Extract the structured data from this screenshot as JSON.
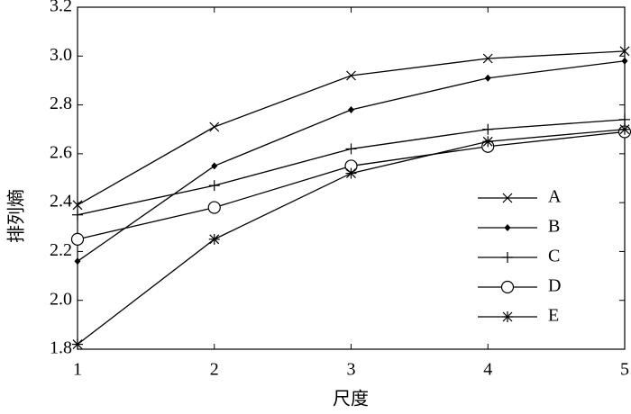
{
  "chart_data": {
    "type": "line",
    "x_label": "尺度",
    "y_label": "排列熵",
    "x": [
      1,
      2,
      3,
      4,
      5
    ],
    "series": [
      {
        "name": "A",
        "color": "#000000",
        "marker": "x",
        "values": [
          2.39,
          2.71,
          2.92,
          2.99,
          3.02
        ]
      },
      {
        "name": "B",
        "color": "#000000",
        "marker": "diamond",
        "values": [
          2.16,
          2.55,
          2.78,
          2.91,
          2.98
        ]
      },
      {
        "name": "C",
        "color": "#000000",
        "marker": "plus",
        "values": [
          2.35,
          2.47,
          2.62,
          2.7,
          2.74
        ]
      },
      {
        "name": "D",
        "color": "#000000",
        "marker": "circle",
        "values": [
          2.25,
          2.38,
          2.55,
          2.63,
          2.69
        ]
      },
      {
        "name": "E",
        "color": "#000000",
        "marker": "asterisk",
        "values": [
          1.82,
          2.25,
          2.52,
          2.65,
          2.7
        ]
      }
    ],
    "xlim": [
      1,
      5
    ],
    "xticks": [
      1,
      2,
      3,
      4,
      5
    ],
    "ylim": [
      1.8,
      3.2
    ],
    "yticks": [
      1.8,
      {
        "value": 2,
        "label": "2.0"
      },
      2.2,
      2.4,
      2.6,
      2.8,
      {
        "value": 3,
        "label": "3.0"
      },
      3.2
    ],
    "grid": false,
    "legend": "lower right"
  }
}
